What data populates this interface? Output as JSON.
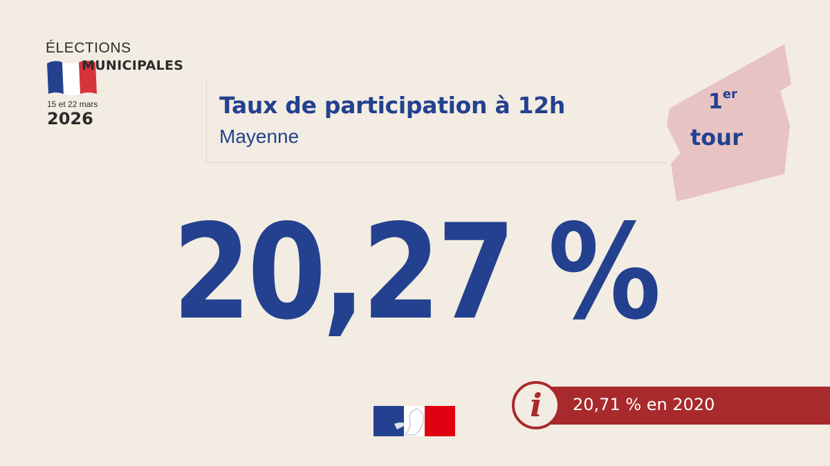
{
  "logo": {
    "line1": "ÉLECTIONS",
    "line2": "MUNICIPALES",
    "dates": "15 et 22 mars",
    "year": "2026"
  },
  "header": {
    "title": "Taux de participation à 12h",
    "subtitle": "Mayenne"
  },
  "badge": {
    "number": "1",
    "suffix": "er",
    "word": "tour"
  },
  "main": {
    "value": "20,27 %"
  },
  "info": {
    "icon": "info-icon",
    "text": "20,71 % en 2020"
  },
  "colors": {
    "background": "#f3ece2",
    "blue": "#23418f",
    "red": "#a82a2c",
    "badge_pink": "#e8c3c3"
  }
}
